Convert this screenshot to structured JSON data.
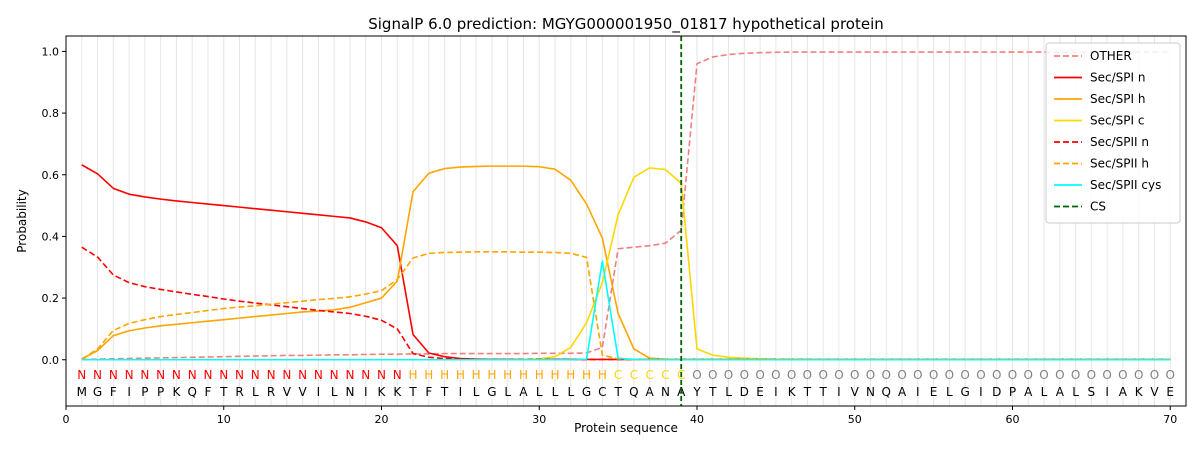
{
  "chart_data": {
    "type": "line",
    "title": "SignalP 6.0 prediction: MGYG000001950_01817 hypothetical protein",
    "xlabel": "Protein sequence",
    "ylabel": "Probability",
    "xlim": [
      0,
      71
    ],
    "ylim": [
      -0.15,
      1.05
    ],
    "xticks": [
      0,
      10,
      20,
      30,
      40,
      50,
      60,
      70
    ],
    "yticks": [
      0.0,
      0.2,
      0.4,
      0.6,
      0.8,
      1.0
    ],
    "vertical_grid": true,
    "legend_position": "top-right",
    "sequence": [
      "M",
      "G",
      "F",
      "I",
      "P",
      "P",
      "K",
      "Q",
      "F",
      "T",
      "R",
      "L",
      "R",
      "V",
      "V",
      "I",
      "L",
      "N",
      "I",
      "K",
      "K",
      "T",
      "F",
      "T",
      "I",
      "L",
      "G",
      "L",
      "A",
      "L",
      "L",
      "L",
      "G",
      "C",
      "T",
      "Q",
      "A",
      "N",
      "A",
      "Y",
      "T",
      "L",
      "D",
      "E",
      "I",
      "K",
      "T",
      "T",
      "I",
      "V",
      "N",
      "Q",
      "A",
      "I",
      "E",
      "L",
      "G",
      "I",
      "D",
      "P",
      "A",
      "L",
      "A",
      "L",
      "S",
      "I",
      "A",
      "K",
      "V",
      "E"
    ],
    "region_labels": [
      "N",
      "N",
      "N",
      "N",
      "N",
      "N",
      "N",
      "N",
      "N",
      "N",
      "N",
      "N",
      "N",
      "N",
      "N",
      "N",
      "N",
      "N",
      "N",
      "N",
      "N",
      "H",
      "H",
      "H",
      "H",
      "H",
      "H",
      "H",
      "H",
      "H",
      "H",
      "H",
      "H",
      "H",
      "C",
      "C",
      "C",
      "C",
      "C",
      "O",
      "O",
      "O",
      "O",
      "O",
      "O",
      "O",
      "O",
      "O",
      "O",
      "O",
      "O",
      "O",
      "O",
      "O",
      "O",
      "O",
      "O",
      "O",
      "O",
      "O",
      "O",
      "O",
      "O",
      "O",
      "O",
      "O",
      "O",
      "O",
      "O",
      "O"
    ],
    "region_colors": {
      "N": "#ff0000",
      "H": "#ffa500",
      "C": "#ffd700",
      "O": "#808080"
    },
    "cleavage_site": 39,
    "series": [
      {
        "name": "OTHER",
        "color": "#f08080",
        "dash": "dashed",
        "values": [
          0.001,
          0.002,
          0.003,
          0.004,
          0.005,
          0.006,
          0.007,
          0.008,
          0.009,
          0.01,
          0.011,
          0.012,
          0.013,
          0.014,
          0.014,
          0.015,
          0.016,
          0.016,
          0.017,
          0.018,
          0.018,
          0.019,
          0.019,
          0.02,
          0.02,
          0.02,
          0.02,
          0.02,
          0.02,
          0.021,
          0.021,
          0.021,
          0.022,
          0.04,
          0.36,
          0.365,
          0.37,
          0.378,
          0.42,
          0.96,
          0.982,
          0.99,
          0.994,
          0.996,
          0.997,
          0.998,
          0.998,
          0.998,
          0.998,
          0.998,
          0.998,
          0.998,
          0.998,
          0.998,
          0.998,
          0.998,
          0.998,
          0.998,
          0.998,
          0.998,
          0.998,
          0.998,
          0.998,
          0.998,
          0.998,
          0.998,
          0.998,
          0.998,
          0.998,
          0.998
        ]
      },
      {
        "name": "Sec/SPI n",
        "color": "#ff0000",
        "dash": "solid",
        "values": [
          0.632,
          0.603,
          0.556,
          0.537,
          0.528,
          0.521,
          0.515,
          0.51,
          0.505,
          0.5,
          0.495,
          0.49,
          0.485,
          0.48,
          0.475,
          0.47,
          0.465,
          0.46,
          0.447,
          0.428,
          0.37,
          0.082,
          0.022,
          0.01,
          0.004,
          0.002,
          0.001,
          0.001,
          0.001,
          0.001,
          0.001,
          0.001,
          0.001,
          0.001,
          0.001,
          0.001,
          0.001,
          0.001,
          0.001,
          0.001,
          0.001,
          0.001,
          0.001,
          0.001,
          0.001,
          0.001,
          0.001,
          0.001,
          0.001,
          0.001,
          0.001,
          0.001,
          0.001,
          0.001,
          0.001,
          0.001,
          0.001,
          0.001,
          0.001,
          0.001,
          0.001,
          0.001,
          0.001,
          0.001,
          0.001,
          0.001,
          0.001,
          0.001,
          0.001,
          0.001
        ]
      },
      {
        "name": "Sec/SPI h",
        "color": "#ffa500",
        "dash": "solid",
        "values": [
          0.002,
          0.03,
          0.078,
          0.094,
          0.103,
          0.11,
          0.115,
          0.12,
          0.125,
          0.13,
          0.135,
          0.14,
          0.145,
          0.15,
          0.155,
          0.158,
          0.162,
          0.17,
          0.185,
          0.2,
          0.255,
          0.545,
          0.605,
          0.62,
          0.625,
          0.627,
          0.628,
          0.628,
          0.628,
          0.626,
          0.618,
          0.582,
          0.505,
          0.395,
          0.15,
          0.035,
          0.005,
          0.002,
          0.001,
          0.001,
          0.001,
          0.001,
          0.001,
          0.001,
          0.001,
          0.001,
          0.001,
          0.001,
          0.001,
          0.001,
          0.001,
          0.001,
          0.001,
          0.001,
          0.001,
          0.001,
          0.001,
          0.001,
          0.001,
          0.001,
          0.001,
          0.001,
          0.001,
          0.001,
          0.001,
          0.001,
          0.001,
          0.001,
          0.001,
          0.001
        ]
      },
      {
        "name": "Sec/SPI c",
        "color": "#ffd700",
        "dash": "solid",
        "values": [
          0.0,
          0.0,
          0.0,
          0.0,
          0.0,
          0.0,
          0.0,
          0.0,
          0.0,
          0.0,
          0.0,
          0.0,
          0.0,
          0.0,
          0.0,
          0.0,
          0.0,
          0.0,
          0.0,
          0.0,
          0.0,
          0.0,
          0.0,
          0.0,
          0.0,
          0.0,
          0.0,
          0.0,
          0.001,
          0.003,
          0.01,
          0.04,
          0.12,
          0.25,
          0.47,
          0.592,
          0.622,
          0.617,
          0.572,
          0.035,
          0.015,
          0.008,
          0.005,
          0.003,
          0.002,
          0.002,
          0.002,
          0.001,
          0.001,
          0.001,
          0.001,
          0.001,
          0.001,
          0.001,
          0.001,
          0.001,
          0.001,
          0.001,
          0.001,
          0.001,
          0.001,
          0.001,
          0.001,
          0.001,
          0.001,
          0.001,
          0.001,
          0.001,
          0.001,
          0.001
        ]
      },
      {
        "name": "Sec/SPII n",
        "color": "#ff0000",
        "dash": "dashed",
        "values": [
          0.365,
          0.333,
          0.275,
          0.25,
          0.237,
          0.228,
          0.22,
          0.212,
          0.205,
          0.197,
          0.19,
          0.184,
          0.178,
          0.172,
          0.166,
          0.16,
          0.155,
          0.15,
          0.141,
          0.128,
          0.1,
          0.02,
          0.008,
          0.004,
          0.002,
          0.001,
          0.001,
          0.001,
          0.001,
          0.001,
          0.001,
          0.001,
          0.001,
          0.001,
          0.001,
          0.001,
          0.001,
          0.001,
          0.001,
          0.001,
          0.001,
          0.001,
          0.001,
          0.001,
          0.001,
          0.001,
          0.001,
          0.001,
          0.001,
          0.001,
          0.001,
          0.001,
          0.001,
          0.001,
          0.001,
          0.001,
          0.001,
          0.001,
          0.001,
          0.001,
          0.001,
          0.001,
          0.001,
          0.001,
          0.001,
          0.001,
          0.001,
          0.001,
          0.001,
          0.001
        ]
      },
      {
        "name": "Sec/SPII h",
        "color": "#ffa500",
        "dash": "dashed",
        "values": [
          0.002,
          0.035,
          0.095,
          0.118,
          0.13,
          0.14,
          0.147,
          0.153,
          0.16,
          0.166,
          0.171,
          0.175,
          0.18,
          0.185,
          0.19,
          0.195,
          0.199,
          0.204,
          0.213,
          0.224,
          0.26,
          0.33,
          0.345,
          0.348,
          0.349,
          0.35,
          0.35,
          0.35,
          0.349,
          0.349,
          0.348,
          0.345,
          0.332,
          0.015,
          0.003,
          0.001,
          0.001,
          0.001,
          0.001,
          0.001,
          0.001,
          0.001,
          0.001,
          0.001,
          0.001,
          0.001,
          0.001,
          0.001,
          0.001,
          0.001,
          0.001,
          0.001,
          0.001,
          0.001,
          0.001,
          0.001,
          0.001,
          0.001,
          0.001,
          0.001,
          0.001,
          0.001,
          0.001,
          0.001,
          0.001,
          0.001,
          0.001,
          0.001,
          0.001,
          0.001
        ]
      },
      {
        "name": "Sec/SPII cys",
        "color": "#00ffff",
        "dash": "solid",
        "values": [
          0.0,
          0.0,
          0.0,
          0.0,
          0.0,
          0.0,
          0.0,
          0.0,
          0.0,
          0.0,
          0.0,
          0.0,
          0.0,
          0.0,
          0.0,
          0.0,
          0.0,
          0.0,
          0.0,
          0.0,
          0.0,
          0.0,
          0.0,
          0.0,
          0.0,
          0.0,
          0.0,
          0.0,
          0.0,
          0.0,
          0.0,
          0.0,
          0.002,
          0.32,
          0.005,
          0.001,
          0.0,
          0.0,
          0.0,
          0.0,
          0.0,
          0.0,
          0.0,
          0.0,
          0.0,
          0.0,
          0.0,
          0.0,
          0.0,
          0.0,
          0.0,
          0.0,
          0.0,
          0.0,
          0.0,
          0.0,
          0.0,
          0.0,
          0.0,
          0.0,
          0.0,
          0.0,
          0.0,
          0.0,
          0.0,
          0.0,
          0.0,
          0.0,
          0.0,
          0.0
        ]
      }
    ],
    "cs_legend": {
      "name": "CS",
      "color": "#006400",
      "dash": "dashed"
    }
  }
}
